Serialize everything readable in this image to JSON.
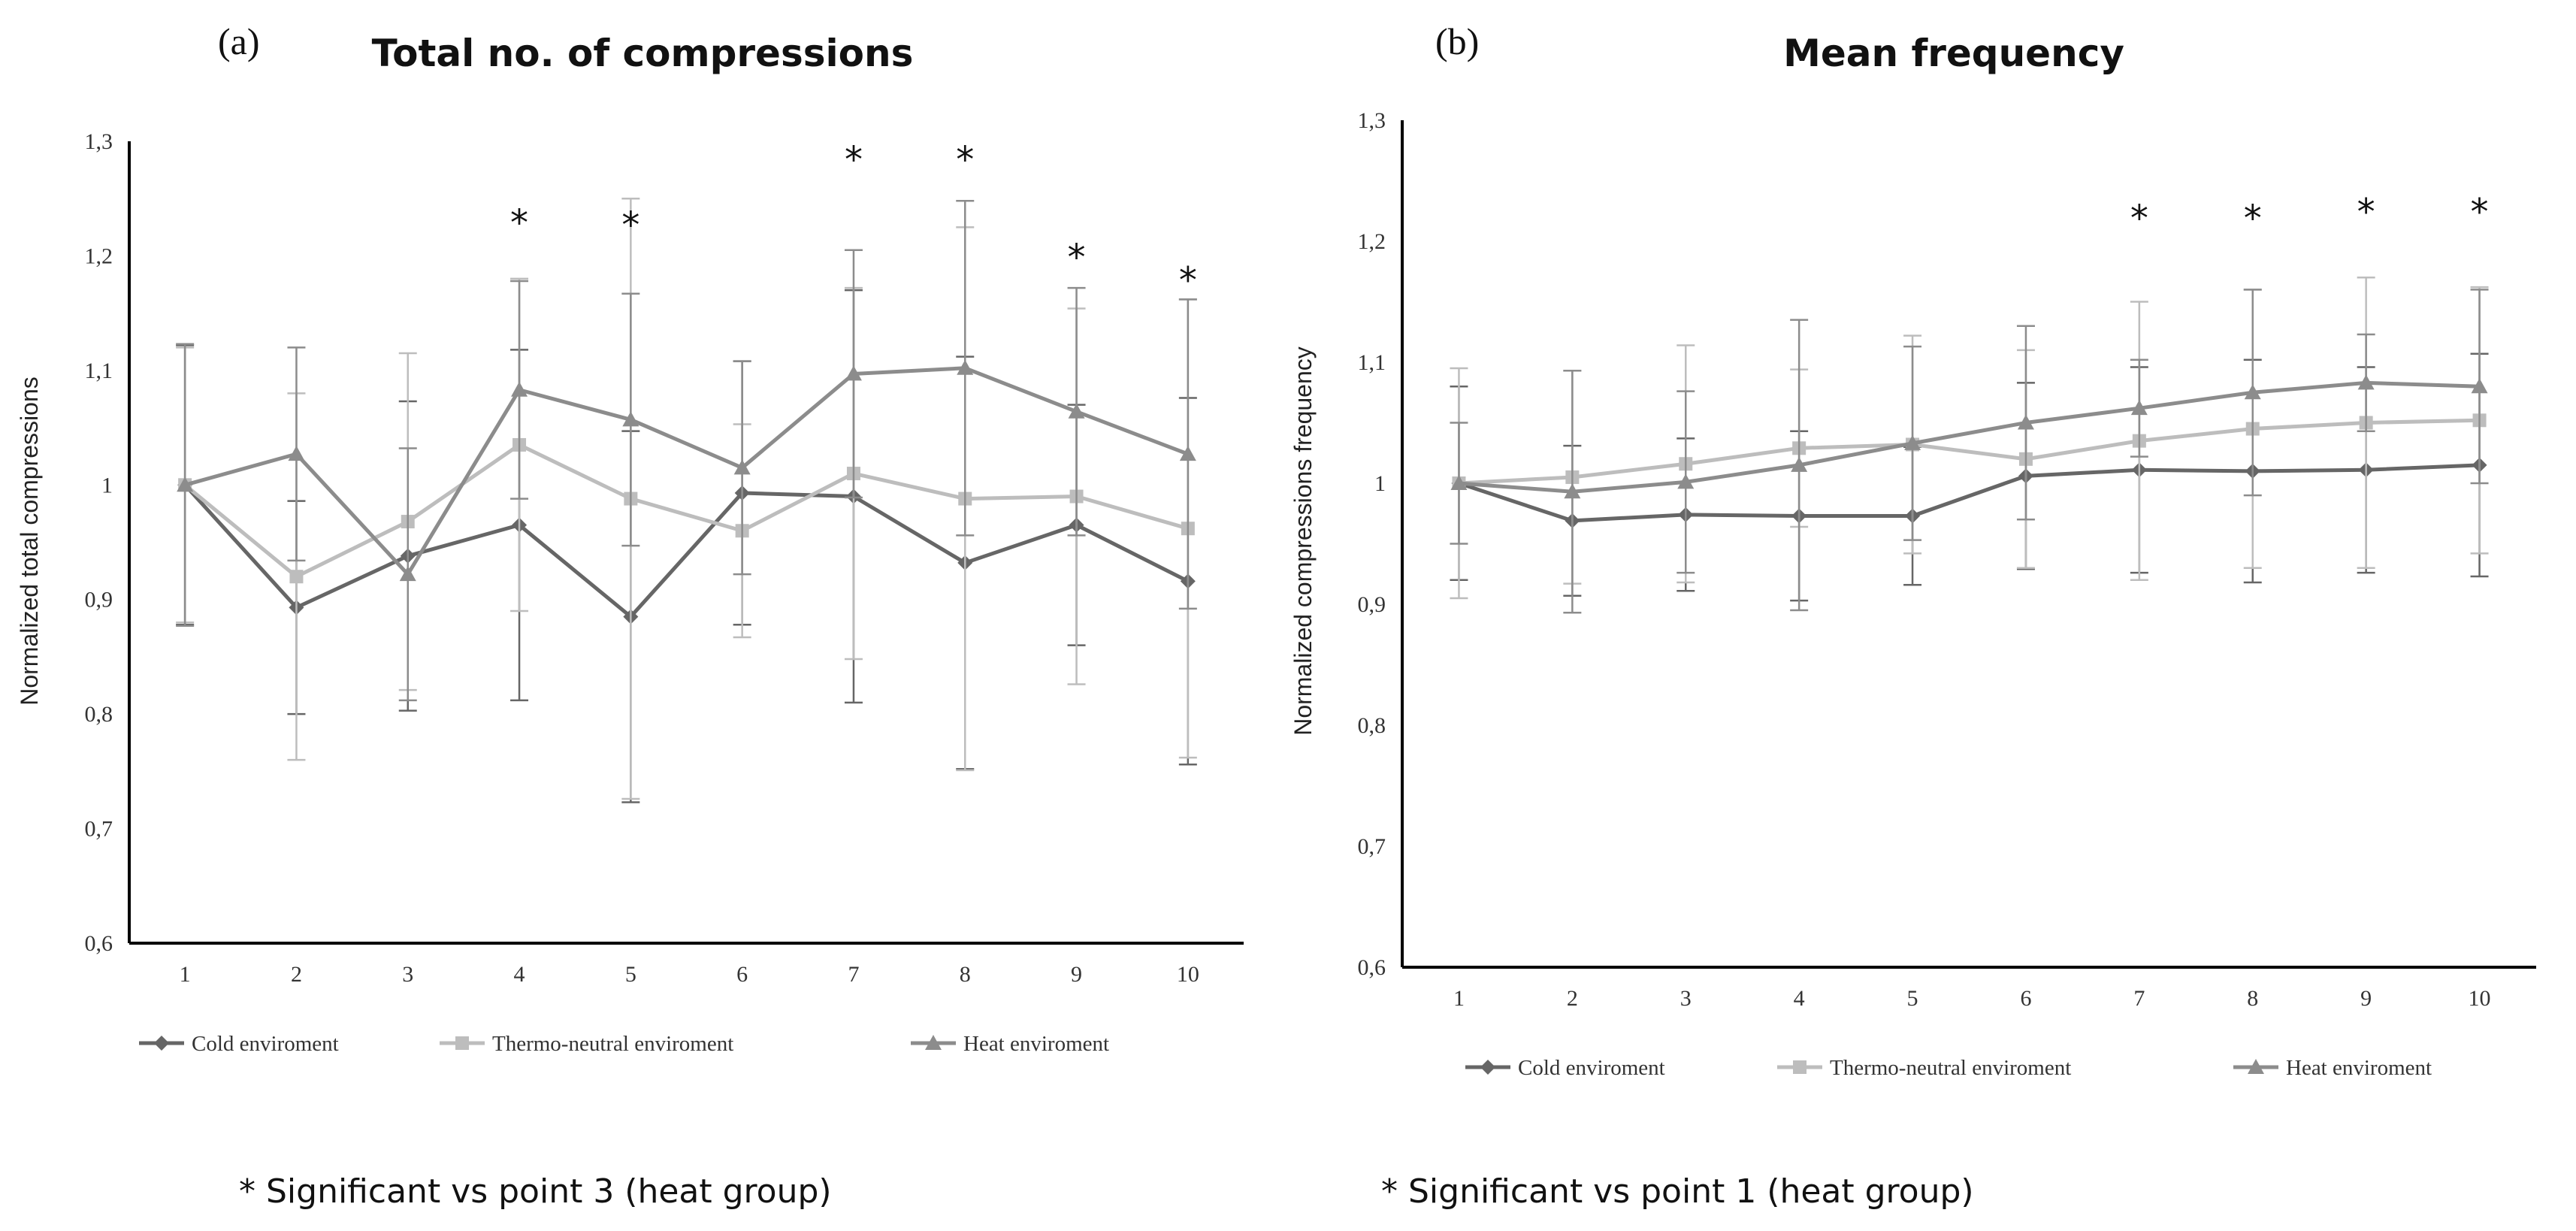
{
  "footnotes": {
    "a": "* Significant vs point 3 (heat group)",
    "b": "* Significant vs point 1 (heat group)"
  },
  "colors": {
    "cold": "#666666",
    "thermo": "#bdbdbd",
    "heat": "#8c8c8c",
    "axis": "#000000",
    "text": "#333333"
  },
  "chart_data": [
    {
      "panel_label": "(a)",
      "type": "line",
      "title": "Total no. of compressions",
      "xlabel": "",
      "ylabel": "Normalized total compressions",
      "ylim": [
        0.6,
        1.3
      ],
      "ytick_step": 0.1,
      "yticks": [
        "0,6",
        "0,7",
        "0,8",
        "0,9",
        "1",
        "1,1",
        "1,2",
        "1,3"
      ],
      "categories": [
        "1",
        "2",
        "3",
        "4",
        "5",
        "6",
        "7",
        "8",
        "9",
        "10"
      ],
      "grid": false,
      "legend": "bottom",
      "series": [
        {
          "name": "Cold enviroment",
          "key": "cold",
          "marker": "diamond",
          "values": [
            1.0,
            0.893,
            0.938,
            0.965,
            0.885,
            0.993,
            0.99,
            0.932,
            0.965,
            0.916
          ],
          "errors": [
            0.122,
            0.093,
            0.135,
            0.153,
            0.162,
            0.115,
            0.18,
            0.18,
            0.105,
            0.16
          ]
        },
        {
          "name": "Thermo-neutral enviroment",
          "key": "thermo",
          "marker": "square",
          "values": [
            1.0,
            0.92,
            0.968,
            1.035,
            0.988,
            0.96,
            1.01,
            0.988,
            0.99,
            0.962
          ],
          "errors": [
            0.12,
            0.16,
            0.147,
            0.145,
            0.262,
            0.093,
            0.162,
            0.237,
            0.164,
            0.2
          ]
        },
        {
          "name": "Heat enviroment",
          "key": "heat",
          "marker": "triangle",
          "values": [
            1.0,
            1.027,
            0.922,
            1.083,
            1.057,
            1.015,
            1.097,
            1.102,
            1.064,
            1.027
          ],
          "errors": [
            0.123,
            0.093,
            0.11,
            0.095,
            0.11,
            0.093,
            0.108,
            0.146,
            0.108,
            0.135
          ]
        }
      ],
      "significance": {
        "symbol": "*",
        "points": [
          {
            "category": "4",
            "y": 1.235
          },
          {
            "category": "5",
            "y": 1.233
          },
          {
            "category": "7",
            "y": 1.29
          },
          {
            "category": "8",
            "y": 1.29
          },
          {
            "category": "9",
            "y": 1.205
          },
          {
            "category": "10",
            "y": 1.185
          }
        ]
      }
    },
    {
      "panel_label": "(b)",
      "type": "line",
      "title": "Mean frequency",
      "xlabel": "",
      "ylabel": "Normalized compressions frequency",
      "ylim": [
        0.6,
        1.3
      ],
      "ytick_step": 0.1,
      "yticks": [
        "0,6",
        "0,7",
        "0,8",
        "0,9",
        "1",
        "1,1",
        "1,2",
        "1,3"
      ],
      "categories": [
        "1",
        "2",
        "3",
        "4",
        "5",
        "6",
        "7",
        "8",
        "9",
        "10"
      ],
      "grid": false,
      "legend": "bottom",
      "series": [
        {
          "name": "Cold enviroment",
          "key": "cold",
          "marker": "diamond",
          "values": [
            1.0,
            0.969,
            0.974,
            0.973,
            0.973,
            1.006,
            1.011,
            1.01,
            1.011,
            1.015
          ],
          "errors": [
            0.08,
            0.062,
            0.063,
            0.07,
            0.057,
            0.077,
            0.085,
            0.092,
            0.085,
            0.092
          ]
        },
        {
          "name": "Thermo-neutral enviroment",
          "key": "thermo",
          "marker": "square",
          "values": [
            1.0,
            1.005,
            1.016,
            1.029,
            1.032,
            1.02,
            1.035,
            1.045,
            1.05,
            1.052
          ],
          "errors": [
            0.095,
            0.088,
            0.098,
            0.065,
            0.09,
            0.09,
            0.115,
            0.115,
            0.12,
            0.11
          ]
        },
        {
          "name": "Heat enviroment",
          "key": "heat",
          "marker": "triangle",
          "values": [
            1.0,
            0.993,
            1.001,
            1.015,
            1.033,
            1.05,
            1.062,
            1.075,
            1.083,
            1.08
          ],
          "errors": [
            0.05,
            0.1,
            0.075,
            0.12,
            0.08,
            0.08,
            0.04,
            0.085,
            0.04,
            0.08
          ]
        }
      ],
      "significance": {
        "symbol": "*",
        "points": [
          {
            "category": "7",
            "y": 1.225
          },
          {
            "category": "8",
            "y": 1.225
          },
          {
            "category": "9",
            "y": 1.23
          },
          {
            "category": "10",
            "y": 1.23
          }
        ]
      }
    }
  ]
}
